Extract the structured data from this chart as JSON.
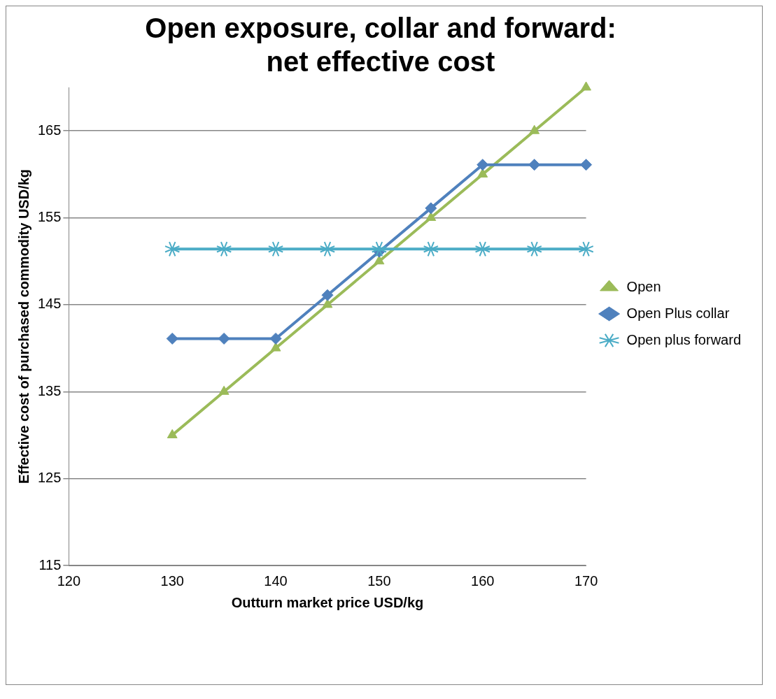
{
  "chart_data": {
    "type": "line",
    "title": "Open exposure, collar and forward: net effective cost",
    "xlabel": "Outturn market price USD/kg",
    "ylabel": "Effective cost of purchased commodity USD/kg",
    "x": [
      130,
      135,
      140,
      145,
      150,
      155,
      160,
      165,
      170
    ],
    "series": [
      {
        "name": "Open",
        "color": "#9bbb59",
        "marker": "triangle",
        "values": [
          130,
          135,
          140,
          145,
          150,
          155,
          160,
          165,
          170
        ]
      },
      {
        "name": "Open Plus collar",
        "color": "#4f81bd",
        "marker": "diamond",
        "values": [
          141.1,
          141.1,
          141.1,
          146.1,
          151.1,
          156.1,
          161.1,
          161.1,
          161.1
        ]
      },
      {
        "name": "Open plus forward",
        "color": "#4bacc6",
        "marker": "cross",
        "values": [
          151.4,
          151.4,
          151.4,
          151.4,
          151.4,
          151.4,
          151.4,
          151.4,
          151.4
        ]
      }
    ],
    "xlim": [
      120,
      170
    ],
    "xticks": [
      120,
      130,
      140,
      150,
      160,
      170
    ],
    "ylim": [
      115,
      170
    ],
    "yticks": [
      115,
      125,
      135,
      145,
      155,
      165
    ],
    "grid": "y",
    "legend": "right",
    "line_style": "solid"
  }
}
